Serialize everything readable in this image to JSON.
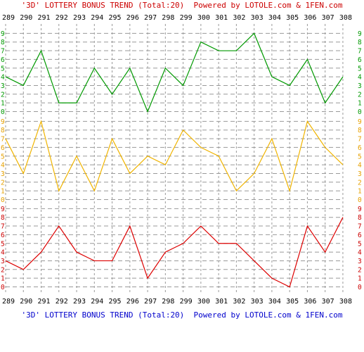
{
  "header_text": "'3D' LOTTERY BONUS TREND (Total:20)  Powered by LOTOLE.com & 1FEN.com",
  "footer_text": "'3D' LOTTERY BONUS TREND (Total:20)  Powered by LOTOLE.com & 1FEN.com",
  "colors": {
    "header_text": "#cc0000",
    "footer_text": "#0000cc",
    "grid": "#999999",
    "axis_text": "#000000",
    "digit_labels_1": "#009900",
    "digit_labels_2": "#e6a100",
    "digit_labels_3": "#cc0000"
  },
  "chart_data": {
    "type": "line",
    "x": [
      "289",
      "290",
      "291",
      "292",
      "293",
      "294",
      "295",
      "296",
      "297",
      "298",
      "299",
      "300",
      "301",
      "302",
      "303",
      "304",
      "305",
      "306",
      "307",
      "308"
    ],
    "y_ticks": [
      "0",
      "1",
      "2",
      "3",
      "4",
      "5",
      "6",
      "7",
      "8",
      "9"
    ],
    "ylim": [
      0,
      9
    ],
    "grid": true,
    "series": [
      {
        "color": "#009900",
        "values": [
          4,
          3,
          7,
          1,
          1,
          5,
          2,
          5,
          0,
          5,
          3,
          8,
          7,
          7,
          9,
          4,
          3,
          6,
          1,
          4
        ]
      },
      {
        "color": "#f0b400",
        "values": [
          7,
          3,
          9,
          1,
          5,
          1,
          7,
          3,
          5,
          4,
          8,
          6,
          5,
          1,
          3,
          7,
          1,
          9,
          6,
          4
        ]
      },
      {
        "color": "#dd0000",
        "values": [
          3,
          2,
          4,
          7,
          4,
          3,
          3,
          7,
          1,
          4,
          5,
          7,
          5,
          5,
          3,
          1,
          0,
          7,
          4,
          8
        ]
      }
    ]
  }
}
